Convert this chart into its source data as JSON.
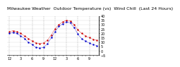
{
  "title": "Milwaukee Weather  Outdoor Temperature (vs)  Wind Chill  (Last 24 Hours)",
  "outdoor_temp": [
    22,
    23,
    22,
    20,
    17,
    14,
    11,
    9,
    8,
    9,
    12,
    18,
    25,
    30,
    33,
    35,
    34,
    30,
    24,
    20,
    17,
    15,
    13,
    12
  ],
  "wind_chill": [
    20,
    21,
    20,
    17,
    14,
    10,
    7,
    4,
    3,
    4,
    8,
    15,
    22,
    28,
    31,
    33,
    32,
    27,
    19,
    14,
    11,
    9,
    7,
    6
  ],
  "outdoor_color": "#cc0000",
  "wind_chill_color": "#0000cc",
  "bg_color": "#ffffff",
  "plot_bg": "#ffffff",
  "grid_color": "#999999",
  "title_fontsize": 4.5,
  "tick_fontsize": 3.5,
  "ylim_min": -5,
  "ylim_max": 40,
  "ytick_interval": 5
}
